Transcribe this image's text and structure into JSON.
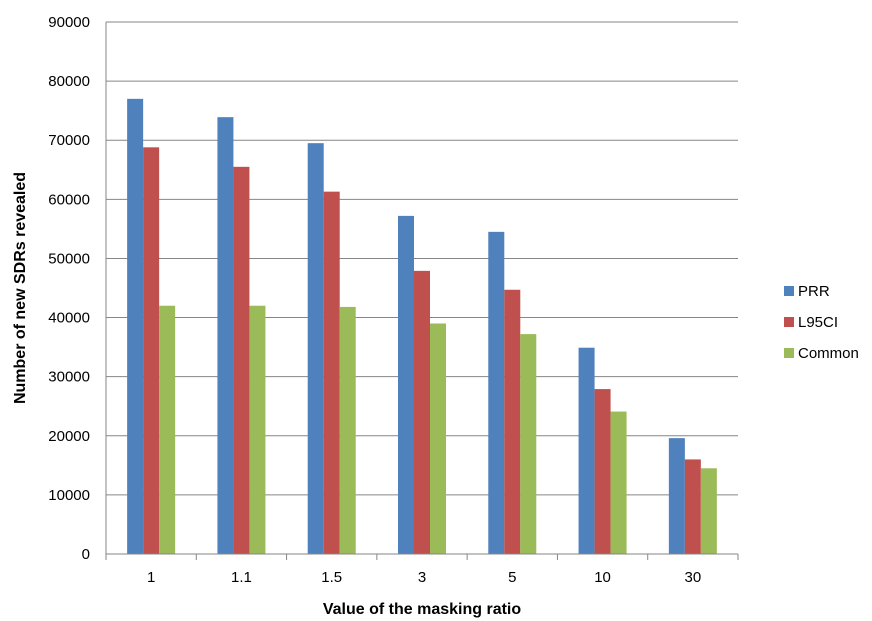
{
  "chart_data": {
    "type": "bar",
    "categories": [
      "1",
      "1.1",
      "1.5",
      "3",
      "5",
      "10",
      "30"
    ],
    "series": [
      {
        "name": "PRR",
        "color": "#4f81bd",
        "values": [
          77000,
          73900,
          69500,
          57200,
          54500,
          34900,
          19600
        ]
      },
      {
        "name": "L95CI",
        "color": "#c0504d",
        "values": [
          68800,
          65500,
          61300,
          47900,
          44700,
          27900,
          16000
        ]
      },
      {
        "name": "Common",
        "color": "#9bbb59",
        "values": [
          42000,
          42000,
          41800,
          39000,
          37200,
          24100,
          14500
        ]
      }
    ],
    "yticks": [
      "0",
      "10000",
      "20000",
      "30000",
      "40000",
      "50000",
      "60000",
      "70000",
      "80000",
      "90000"
    ],
    "xlabel": "Value of the masking ratio",
    "ylabel": "Number of new SDRs revealed",
    "ylim": [
      0,
      90000
    ],
    "grid": true,
    "legend_position": "right"
  }
}
